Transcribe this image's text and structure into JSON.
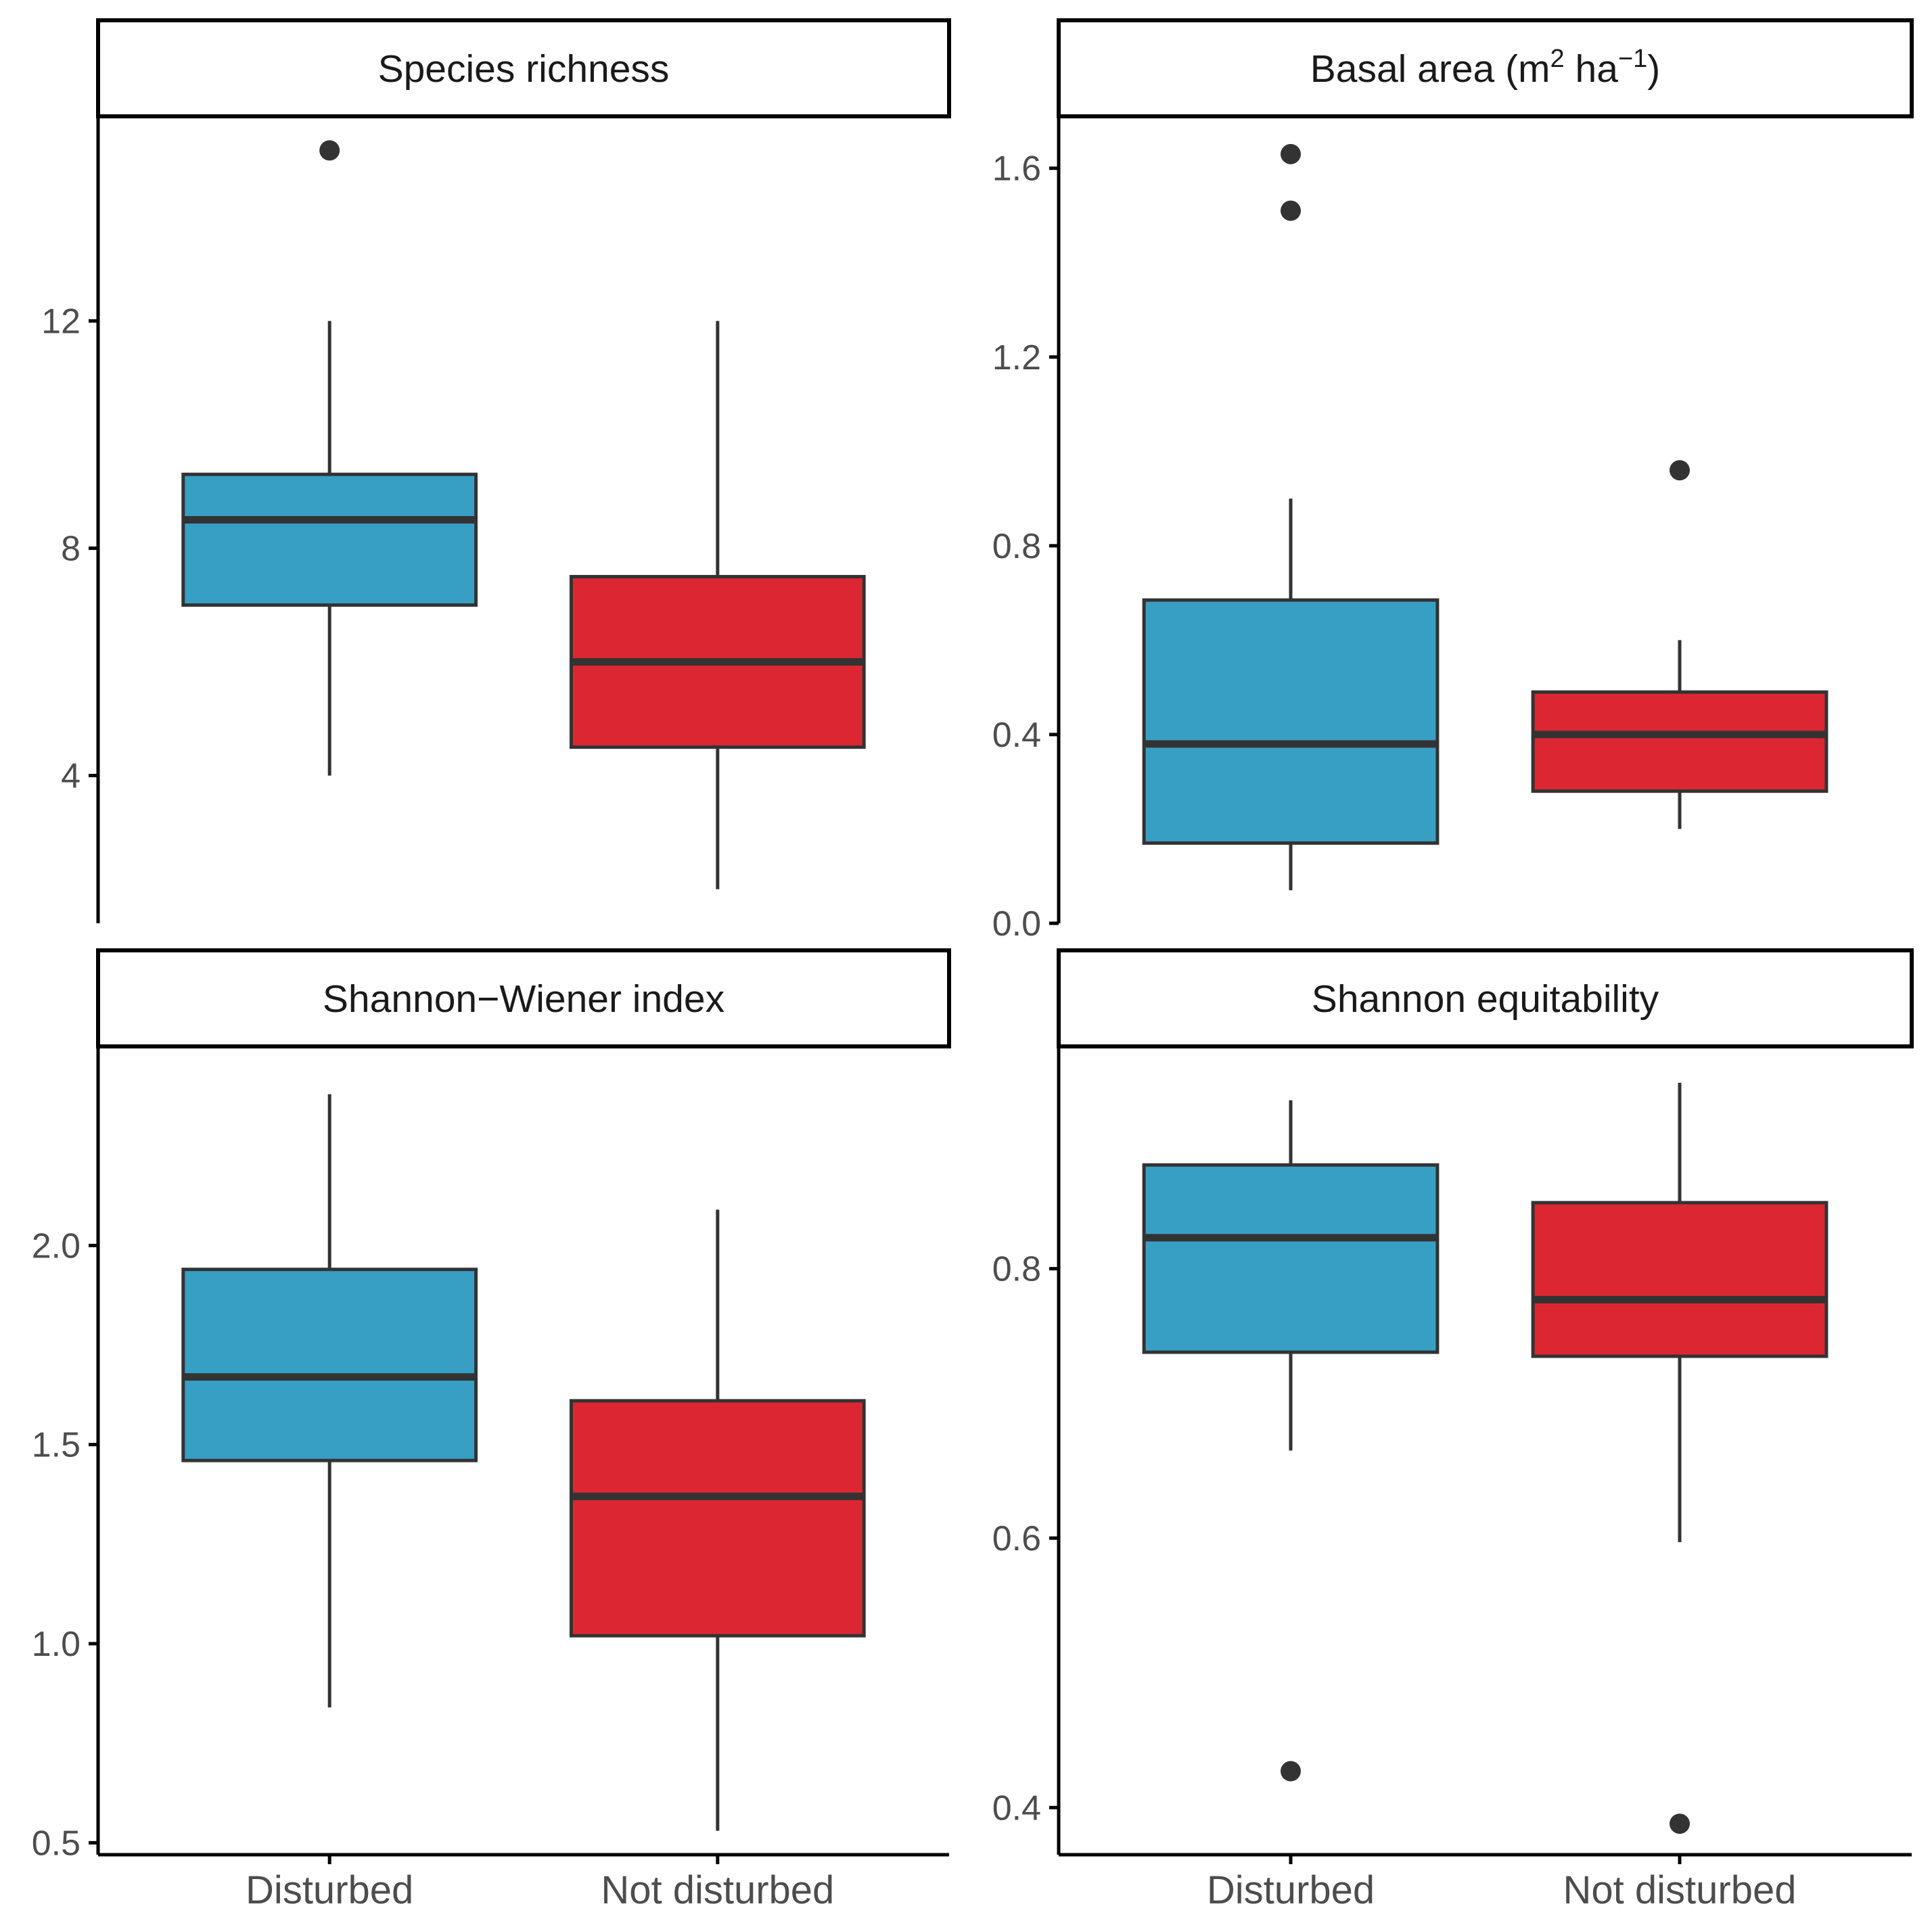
{
  "chart_data": [
    {
      "type": "box",
      "title": "Species richness",
      "categories": [
        "Disturbed",
        "Not disturbed"
      ],
      "ylim": [
        1.4,
        15.6
      ],
      "yticks": [
        4,
        8,
        12
      ],
      "ytick_labels": [
        "4",
        "8",
        "12"
      ],
      "show_x_labels": false,
      "boxes": [
        {
          "category": "Disturbed",
          "whisker_low": 4,
          "q1": 7,
          "median": 8.5,
          "q3": 9.3,
          "whisker_high": 12,
          "outliers": [
            15
          ]
        },
        {
          "category": "Not disturbed",
          "whisker_low": 2,
          "q1": 4.5,
          "median": 6,
          "q3": 7.5,
          "whisker_high": 12,
          "outliers": []
        }
      ]
    },
    {
      "type": "box",
      "title": "Basal area (m",
      "title_sup1": "2",
      "title_mid": " ha",
      "title_sup2": "−1",
      "title_end": ")",
      "categories": [
        "Disturbed",
        "Not disturbed"
      ],
      "ylim": [
        0,
        1.71
      ],
      "yticks": [
        0,
        0.4,
        0.8,
        1.2,
        1.6
      ],
      "ytick_labels": [
        "0.0",
        "0.4",
        "0.8",
        "1.2",
        "1.6"
      ],
      "show_x_labels": false,
      "boxes": [
        {
          "category": "Disturbed",
          "whisker_low": 0.07,
          "q1": 0.17,
          "median": 0.38,
          "q3": 0.685,
          "whisker_high": 0.9,
          "outliers": [
            1.63,
            1.51
          ]
        },
        {
          "category": "Not disturbed",
          "whisker_low": 0.2,
          "q1": 0.28,
          "median": 0.4,
          "q3": 0.49,
          "whisker_high": 0.6,
          "outliers": [
            0.96
          ]
        }
      ]
    },
    {
      "type": "box",
      "title": "Shannon−Wiener index",
      "categories": [
        "Disturbed",
        "Not disturbed"
      ],
      "ylim": [
        0.47,
        2.5
      ],
      "yticks": [
        0.5,
        1.0,
        1.5,
        2.0
      ],
      "ytick_labels": [
        "0.5",
        "1.0",
        "1.5",
        "2.0"
      ],
      "show_x_labels": true,
      "boxes": [
        {
          "category": "Disturbed",
          "whisker_low": 0.84,
          "q1": 1.46,
          "median": 1.67,
          "q3": 1.94,
          "whisker_high": 2.38,
          "outliers": []
        },
        {
          "category": "Not disturbed",
          "whisker_low": 0.53,
          "q1": 1.02,
          "median": 1.37,
          "q3": 1.61,
          "whisker_high": 2.09,
          "outliers": []
        }
      ]
    },
    {
      "type": "box",
      "title": "Shannon equitability",
      "categories": [
        "Disturbed",
        "Not disturbed"
      ],
      "ylim": [
        0.365,
        0.965
      ],
      "yticks": [
        0.4,
        0.6,
        0.8
      ],
      "ytick_labels": [
        "0.4",
        "0.6",
        "0.8"
      ],
      "show_x_labels": true,
      "boxes": [
        {
          "category": "Disturbed",
          "whisker_low": 0.665,
          "q1": 0.738,
          "median": 0.823,
          "q3": 0.877,
          "whisker_high": 0.925,
          "outliers": [
            0.427
          ]
        },
        {
          "category": "Not disturbed",
          "whisker_low": 0.597,
          "q1": 0.735,
          "median": 0.777,
          "q3": 0.849,
          "whisker_high": 0.938,
          "outliers": [
            0.388
          ]
        }
      ]
    }
  ],
  "colors": {
    "Disturbed": "#389fc4",
    "Not disturbed": "#dc2733",
    "outline": "#333333",
    "axis": "#000000",
    "tick_text": "#4d4d4d",
    "strip_text": "#1a1a1a"
  }
}
